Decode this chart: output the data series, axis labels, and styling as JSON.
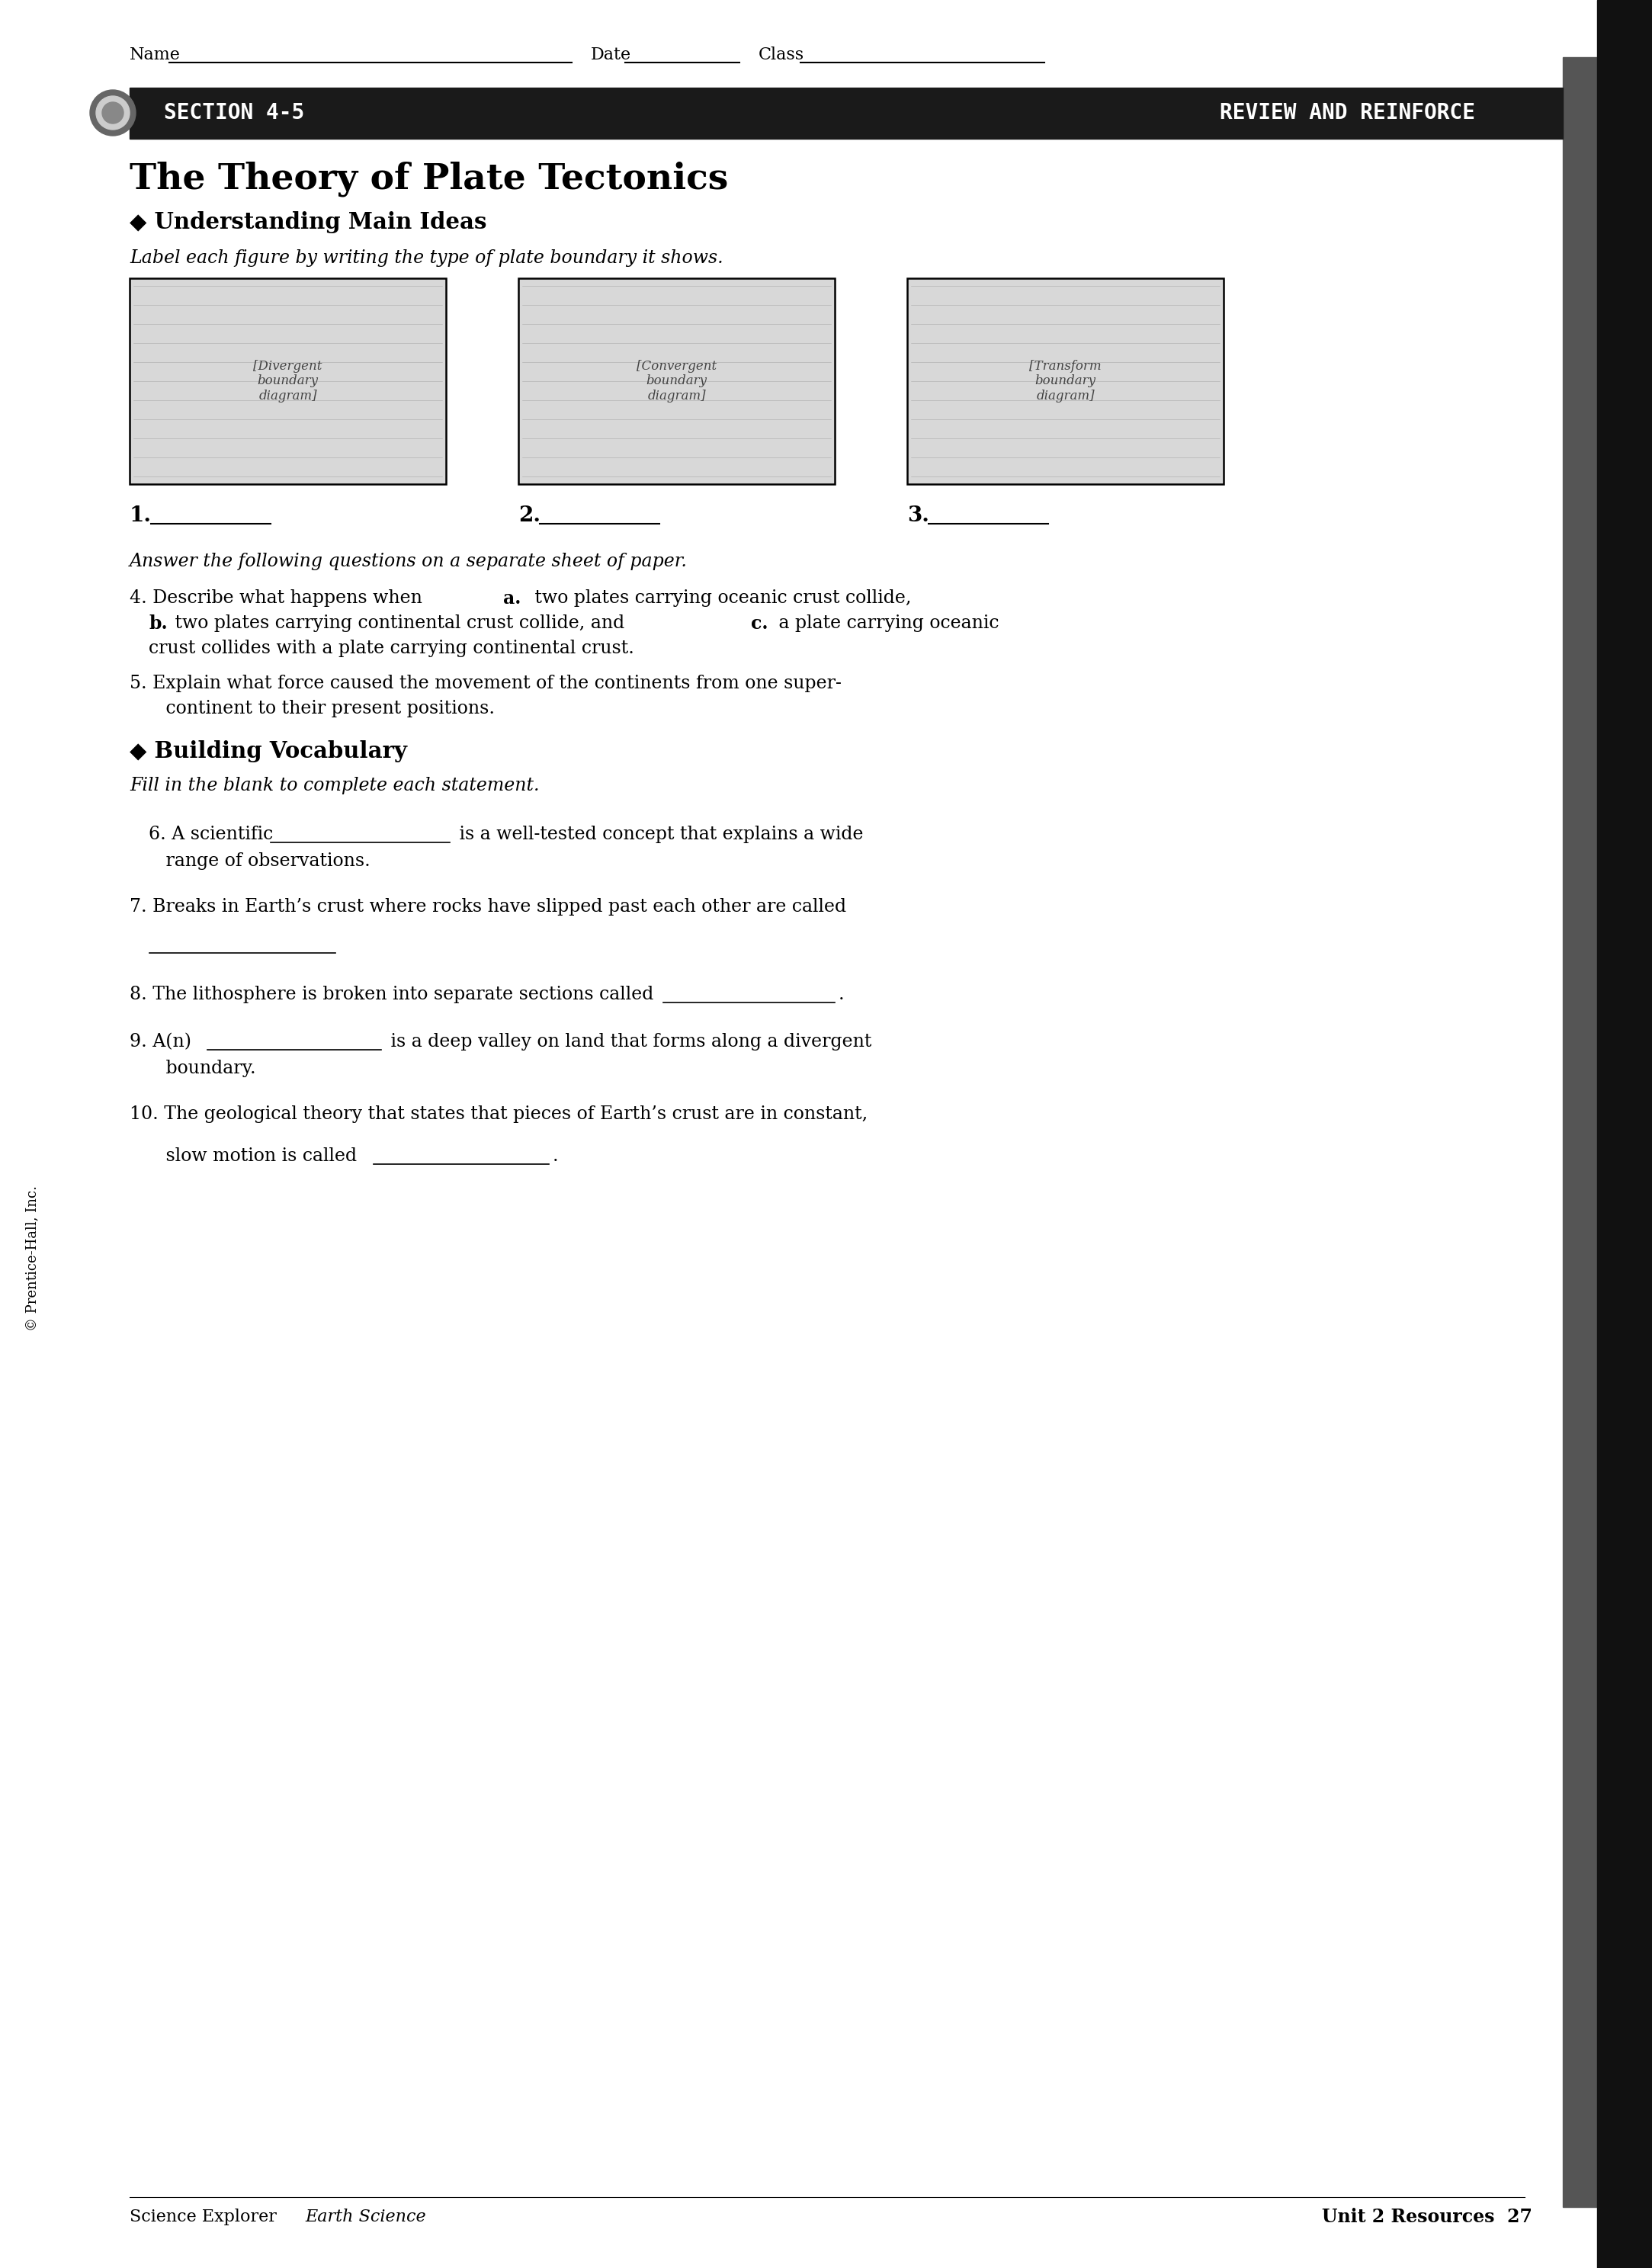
{
  "bg_color": "#ffffff",
  "banner_color": "#1a1a1a",
  "banner_text_color": "#ffffff",
  "section_banner_text": "SECTION 4-5",
  "review_text": "REVIEW AND REINFORCE",
  "main_title": "The Theory of Plate Tectonics",
  "section1_header": "◆ Understanding Main Ideas",
  "section1_italic": "Label each figure by writing the type of plate boundary it shows.",
  "figure_labels": [
    "1.",
    "2.",
    "3."
  ],
  "questions_italic": "Answer the following questions on a separate sheet of paper.",
  "q4_line1": "4. Describe what happens when a. two plates carrying oceanic crust collide,",
  "q4_line2": "   b. two plates carrying continental crust collide, and c. a plate carrying oceanic",
  "q4_line3": "   crust collides with a plate carrying continental crust.",
  "q5_line1": "5. Explain what force caused the movement of the continents from one super-",
  "q5_line2": "   continent to their present positions.",
  "section2_header": "◆ Building Vocabulary",
  "section2_italic": "Fill in the blank to complete each statement.",
  "q6_pre": "6. A scientific ",
  "q6_post": " is a well-tested concept that explains a wide",
  "q6_line2": "   range of observations.",
  "q7_line1": "7. Breaks in Earth’s crust where rocks have slipped past each other are called",
  "q8_pre": "8. The lithosphere is broken into separate sections called ",
  "q8_post": ".",
  "q9_pre": "9. A(n) ",
  "q9_post": " is a deep valley on land that forms along a divergent",
  "q9_line2": "   boundary.",
  "q10_line1": "10. The geological theory that states that pieces of Earth’s crust are in constant,",
  "q10_pre": "   slow motion is called ",
  "q10_post": ".",
  "footer_left_roman": "Science Explorer ",
  "footer_left_italic": "Earth Science",
  "footer_right": "Unit 2 Resources  27",
  "copyright": "© Prentice-Hall, Inc."
}
